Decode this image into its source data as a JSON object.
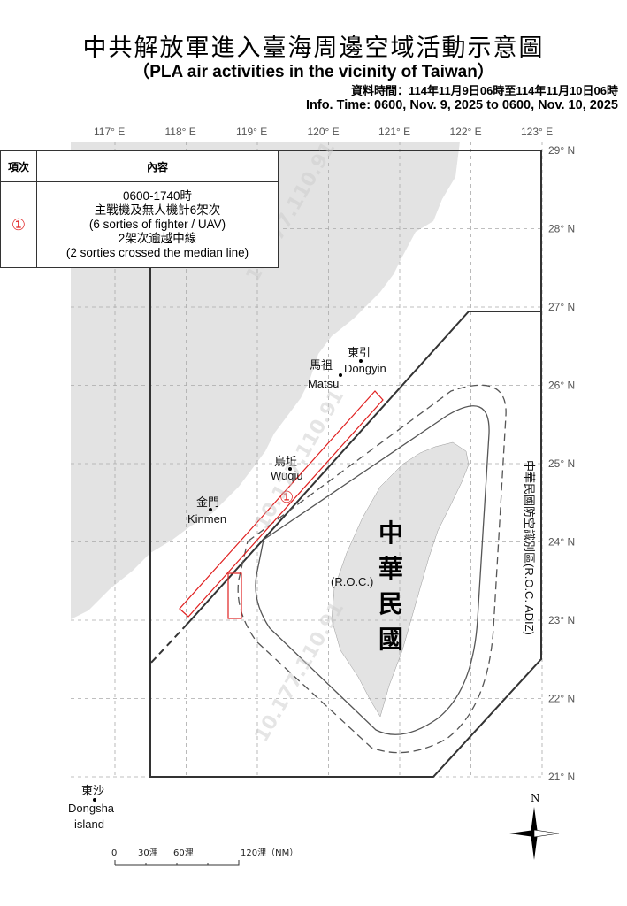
{
  "header": {
    "title": "中共解放軍進入臺海周邊空域活動示意圖",
    "subtitle": "（PLA air activities in the vicinity of Taiwan）",
    "info_zh": "資料時間：114年11月9日06時至114年11月10日06時",
    "info_en": "Info. Time: 0600, Nov. 9, 2025 to 0600, Nov. 10, 2025"
  },
  "legend": {
    "col_item": "項次",
    "col_content": "內容",
    "rows": [
      {
        "marker": "①",
        "lines": [
          "0600-1740時",
          "主戰機及無人機計6架次",
          "(6 sorties of fighter / UAV)",
          "2架次逾越中線",
          "(2 sorties crossed the median line)"
        ]
      }
    ]
  },
  "map": {
    "longitudes": [
      "117° E",
      "118° E",
      "119° E",
      "120° E",
      "121° E",
      "122° E",
      "123° E"
    ],
    "latitudes": [
      "29° N",
      "28° N",
      "27° N",
      "26° N",
      "25° N",
      "24° N",
      "23° N",
      "22° N",
      "21° N"
    ],
    "places": {
      "dongyin_zh": "東引",
      "dongyin_en": "Dongyin",
      "matsu_zh": "馬祖",
      "matsu_en": "Matsu",
      "wuqiu_zh": "烏坵",
      "wuqiu_en": "Wuqiu",
      "kinmen_zh": "金門",
      "kinmen_en": "Kinmen",
      "dongsha_zh": "東沙",
      "dongsha_en1": "Dongsha",
      "dongsha_en2": "island",
      "roc_zh": [
        "中",
        "華",
        "民",
        "國"
      ],
      "roc_en": "(R.O.C.)"
    },
    "adiz_label": "中華民國防空識別區(R.O.C. ADIZ)",
    "activity_marker": "①",
    "activity_color": "#e02020",
    "land_color": "#e3e3e3",
    "watermark": "10.177.110.91",
    "compass_n": "N",
    "scale": {
      "ticks": [
        "0",
        "30浬",
        "60浬",
        "120浬（NM）"
      ]
    }
  }
}
